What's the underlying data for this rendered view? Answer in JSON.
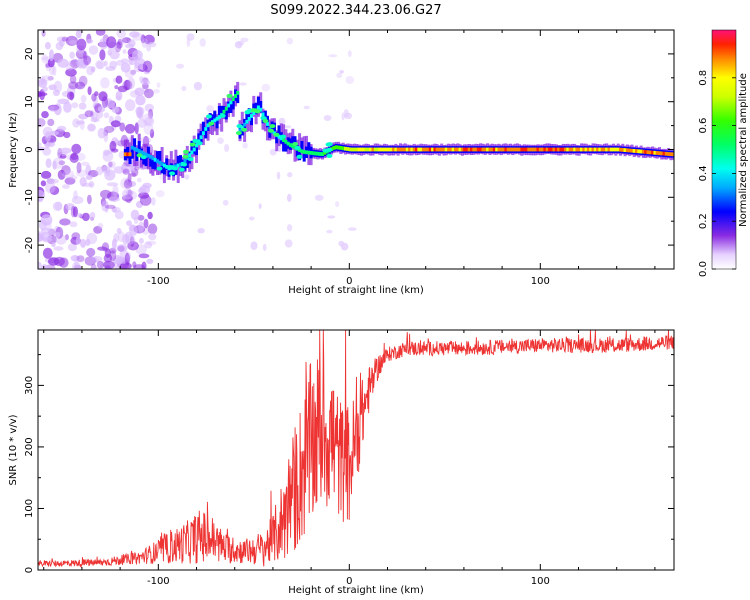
{
  "title": "S099.2022.344.23.06.G27",
  "chart_data": [
    {
      "type": "heatmap",
      "name": "spectrogram",
      "xlabel": "Height of straight line (km)",
      "ylabel": "Frequency (Hz)",
      "xlim": [
        -163,
        170
      ],
      "ylim": [
        -25,
        25
      ],
      "xticks": [
        -100,
        0,
        100
      ],
      "yticks": [
        -20,
        -10,
        0,
        10,
        20
      ],
      "colorbar": {
        "label": "Normalized spectral amplitude",
        "range": [
          0.0,
          1.0
        ],
        "ticks": [
          0.0,
          0.2,
          0.4,
          0.6,
          0.8
        ],
        "tick_labels": [
          "0.0",
          "0.2",
          "0.4",
          "0.6",
          "0.8"
        ]
      },
      "ridge": [
        {
          "x": -115,
          "f": 0.5,
          "a": 0.3
        },
        {
          "x": -105,
          "f": -1.5,
          "a": 0.35
        },
        {
          "x": -95,
          "f": -4,
          "a": 0.4
        },
        {
          "x": -88,
          "f": -3,
          "a": 0.35
        },
        {
          "x": -82,
          "f": 0,
          "a": 0.4
        },
        {
          "x": -75,
          "f": 5,
          "a": 0.4
        },
        {
          "x": -68,
          "f": 7,
          "a": 0.45
        },
        {
          "x": -58,
          "f": 12.5,
          "a": 0.5
        },
        {
          "x": -58,
          "f": 4,
          "a": 0.35
        },
        {
          "x": -48,
          "f": 9,
          "a": 0.45
        },
        {
          "x": -42,
          "f": 4,
          "a": 0.35
        },
        {
          "x": -32,
          "f": 1,
          "a": 0.5
        },
        {
          "x": -25,
          "f": -0.5,
          "a": 0.5
        },
        {
          "x": -15,
          "f": -1,
          "a": 0.55
        },
        {
          "x": -8,
          "f": 0.5,
          "a": 0.6
        },
        {
          "x": 0,
          "f": 0,
          "a": 0.75
        },
        {
          "x": 30,
          "f": 0,
          "a": 0.9
        },
        {
          "x": 60,
          "f": 0,
          "a": 0.9
        },
        {
          "x": 100,
          "f": 0,
          "a": 0.95
        },
        {
          "x": 140,
          "f": 0,
          "a": 0.85
        },
        {
          "x": 168,
          "f": -1,
          "a": 0.95
        }
      ]
    },
    {
      "type": "line",
      "name": "snr",
      "xlabel": "Height of straight line (km)",
      "ylabel": "SNR (10 * v/v)",
      "xlim": [
        -163,
        170
      ],
      "ylim": [
        0,
        390
      ],
      "xticks": [
        -100,
        0,
        100
      ],
      "yticks": [
        0,
        100,
        200,
        300
      ],
      "color": "#ee3333",
      "envelope": {
        "x": [
          -163,
          -130,
          -110,
          -95,
          -85,
          -78,
          -72,
          -65,
          -55,
          -45,
          -40,
          -35,
          -30,
          -25,
          -20,
          -15,
          -10,
          -5,
          0,
          5,
          10,
          15,
          20,
          30,
          60,
          100,
          140,
          170
        ],
        "y": [
          10,
          12,
          20,
          35,
          45,
          55,
          50,
          35,
          30,
          35,
          50,
          80,
          120,
          160,
          200,
          230,
          220,
          180,
          170,
          230,
          290,
          330,
          350,
          360,
          360,
          365,
          365,
          370
        ],
        "noise": [
          5,
          6,
          10,
          25,
          35,
          45,
          40,
          25,
          20,
          30,
          40,
          70,
          100,
          120,
          140,
          130,
          130,
          100,
          100,
          70,
          40,
          20,
          12,
          12,
          12,
          12,
          12,
          12
        ]
      }
    }
  ]
}
